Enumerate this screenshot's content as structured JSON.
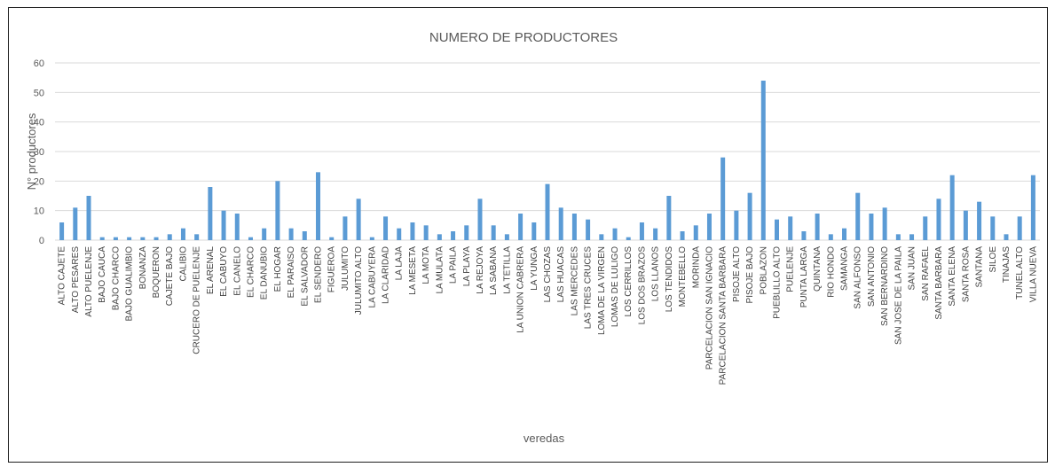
{
  "chart_data": {
    "type": "bar",
    "title": "NUMERO DE PRODUCTORES",
    "xlabel": "veredas",
    "ylabel": "N° productores",
    "ylim": [
      0,
      60
    ],
    "yticks": [
      0,
      10,
      20,
      30,
      40,
      50,
      60
    ],
    "grid": true,
    "color": "#5b9bd5",
    "categories": [
      "ALTO CAJETE",
      "ALTO PESARES",
      "ALTO PUELENJE",
      "BAJO CAUCA",
      "BAJO CHARCO",
      "BAJO GUALIMBIO",
      "BONANZA",
      "BOQUERON",
      "CAJETE BAJO",
      "CALIBIO",
      "CRUCERO DE PUELENJE",
      "EL ARENAL",
      "EL CABUYO",
      "EL CANELO",
      "EL CHARCO",
      "EL DANUBIO",
      "EL HOGAR",
      "EL PARAISO",
      "EL SALVADOR",
      "EL SENDERO",
      "FIGUEROA",
      "JULUMITO",
      "JULUMITO ALTO",
      "LA CABUYERA",
      "LA CLARIDAD",
      "LA LAJA",
      "LA MESETA",
      "LA MOTA",
      "LA MULATA",
      "LA PAILA",
      "LA PLAYA",
      "LA REJOYA",
      "LA SABANA",
      "LA TETILLA",
      "LA UNION CABRERA",
      "LA YUNGA",
      "LAS CHOZAS",
      "LAS HUACAS",
      "LAS MERCEDES",
      "LAS TRES CRUCES",
      "LOMA DE LA VIRGEN",
      "LOMAS DE LULIGO",
      "LOS CERRILLOS",
      "LOS DOS BRAZOS",
      "LOS LLANOS",
      "LOS TENDIDOS",
      "MONTEBELLO",
      "MORINDA",
      "PARCELACION SAN IGNACIO",
      "PARCELACION SANTA BARBARA",
      "PISOJE ALTO",
      "PISOJE BAJO",
      "POBLAZON",
      "PUEBLILLO ALTO",
      "PUELENJE",
      "PUNTA LARGA",
      "QUINTANA",
      "RIO HONDO",
      "SAMANGA",
      "SAN ALFONSO",
      "SAN ANTONIO",
      "SAN BERNARDINO",
      "SAN JOSE DE LA PAILA",
      "SAN JUAN",
      "SAN RAFAEL",
      "SANTA BARBARA",
      "SANTA ELENA",
      "SANTA ROSA",
      "SANTANA",
      "SILOE",
      "TINAJAS",
      "TUNEL ALTO",
      "VILLA NUEVA"
    ],
    "values": [
      6,
      11,
      15,
      1,
      1,
      1,
      1,
      1,
      2,
      4,
      2,
      18,
      10,
      9,
      1,
      4,
      20,
      4,
      3,
      23,
      1,
      8,
      14,
      1,
      8,
      4,
      6,
      5,
      2,
      3,
      5,
      14,
      5,
      2,
      9,
      6,
      19,
      11,
      9,
      7,
      2,
      4,
      1,
      6,
      4,
      15,
      3,
      5,
      9,
      28,
      10,
      16,
      54,
      7,
      8,
      3,
      9,
      2,
      4,
      16,
      9,
      11,
      2,
      2,
      8,
      14,
      22,
      10,
      13,
      8,
      2,
      8,
      22
    ]
  }
}
